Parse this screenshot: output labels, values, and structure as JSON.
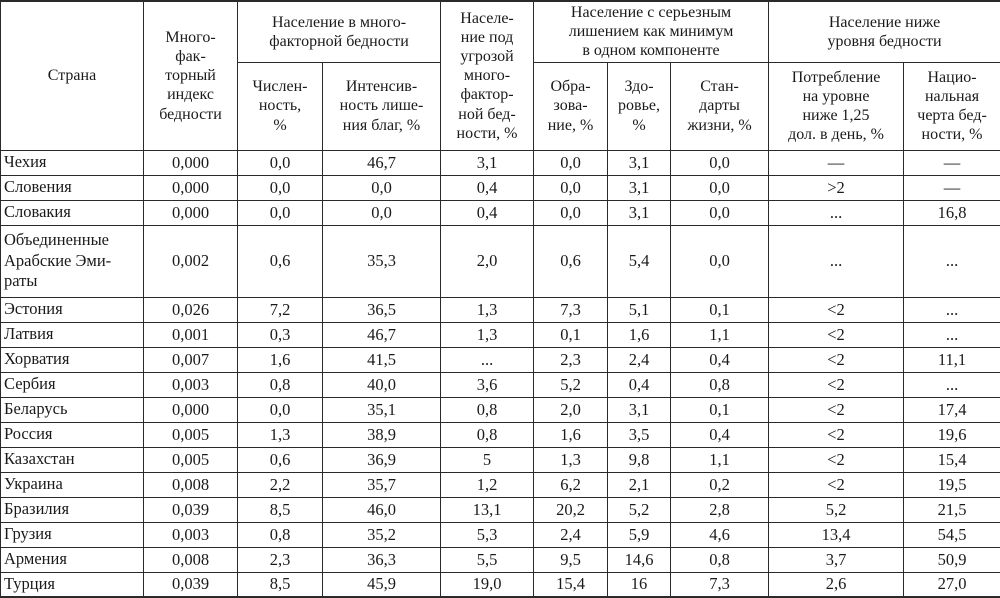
{
  "table": {
    "header": {
      "country": "Страна",
      "mpi": "Много-\nфак-\nторный\nиндекс\nбедности",
      "group_multidim": "Население в много-\nфакторной бедности",
      "headcount": "Числен-\nность,\n%",
      "intensity": "Интенсив-\nность лише-\nния благ, %",
      "at_risk": "Населе-\nние под\nугрозой\nмного-\nфактор-\nной бед-\nности, %",
      "group_deprivation": "Население с серьезным\nлишением как минимум\nв одном компоненте",
      "education": "Обра-\nзова-\nние, %",
      "health": "Здо-\nровье,\n%",
      "living_standards": "Стан-\nдарты\nжизни, %",
      "group_poverty_line": "Население ниже\nуровня бедности",
      "consumption": "Потребление\nна уровне\nниже 1,25\nдол. в день, %",
      "national_line": "Нацио-\nнальная\nчерта бед-\nности, %"
    },
    "rows": [
      {
        "country": "Чехия",
        "values": [
          "0,000",
          "0,0",
          "46,7",
          "3,1",
          "0,0",
          "3,1",
          "0,0",
          "—",
          "—"
        ]
      },
      {
        "country": "Словения",
        "values": [
          "0,000",
          "0,0",
          "0,0",
          "0,4",
          "0,0",
          "3,1",
          "0,0",
          ">2",
          "—"
        ]
      },
      {
        "country": "Словакия",
        "values": [
          "0,000",
          "0,0",
          "0,0",
          "0,4",
          "0,0",
          "3,1",
          "0,0",
          "...",
          "16,8"
        ]
      },
      {
        "country": "Объединенные\nАрабские Эми-\nраты",
        "values": [
          "0,002",
          "0,6",
          "35,3",
          "2,0",
          "0,6",
          "5,4",
          "0,0",
          "...",
          "..."
        ]
      },
      {
        "country": "Эстония",
        "values": [
          "0,026",
          "7,2",
          "36,5",
          "1,3",
          "7,3",
          "5,1",
          "0,1",
          "<2",
          "..."
        ]
      },
      {
        "country": "Латвия",
        "values": [
          "0,001",
          "0,3",
          "46,7",
          "1,3",
          "0,1",
          "1,6",
          "1,1",
          "<2",
          "..."
        ]
      },
      {
        "country": "Хорватия",
        "values": [
          "0,007",
          "1,6",
          "41,5",
          "...",
          "2,3",
          "2,4",
          "0,4",
          "<2",
          "11,1"
        ]
      },
      {
        "country": "Сербия",
        "values": [
          "0,003",
          "0,8",
          "40,0",
          "3,6",
          "5,2",
          "0,4",
          "0,8",
          "<2",
          "..."
        ]
      },
      {
        "country": "Беларусь",
        "values": [
          "0,000",
          "0,0",
          "35,1",
          "0,8",
          "2,0",
          "3,1",
          "0,1",
          "<2",
          "17,4"
        ]
      },
      {
        "country": "Россия",
        "values": [
          "0,005",
          "1,3",
          "38,9",
          "0,8",
          "1,6",
          "3,5",
          "0,4",
          "<2",
          "19,6"
        ]
      },
      {
        "country": "Казахстан",
        "values": [
          "0,005",
          "0,6",
          "36,9",
          "5",
          "1,3",
          "9,8",
          "1,1",
          "<2",
          "15,4"
        ]
      },
      {
        "country": "Украина",
        "values": [
          "0,008",
          "2,2",
          "35,7",
          "1,2",
          "6,2",
          "2,1",
          "0,2",
          "<2",
          "19,5"
        ]
      },
      {
        "country": "Бразилия",
        "values": [
          "0,039",
          "8,5",
          "46,0",
          "13,1",
          "20,2",
          "5,2",
          "2,8",
          "5,2",
          "21,5"
        ]
      },
      {
        "country": "Грузия",
        "values": [
          "0,003",
          "0,8",
          "35,2",
          "5,3",
          "2,4",
          "5,9",
          "4,6",
          "13,4",
          "54,5"
        ]
      },
      {
        "country": "Армения",
        "values": [
          "0,008",
          "2,3",
          "36,3",
          "5,5",
          "9,5",
          "14,6",
          "0,8",
          "3,7",
          "50,9"
        ]
      },
      {
        "country": "Турция",
        "values": [
          "0,039",
          "8,5",
          "45,9",
          "19,0",
          "15,4",
          "16",
          "7,3",
          "2,6",
          "27,0"
        ]
      }
    ]
  }
}
